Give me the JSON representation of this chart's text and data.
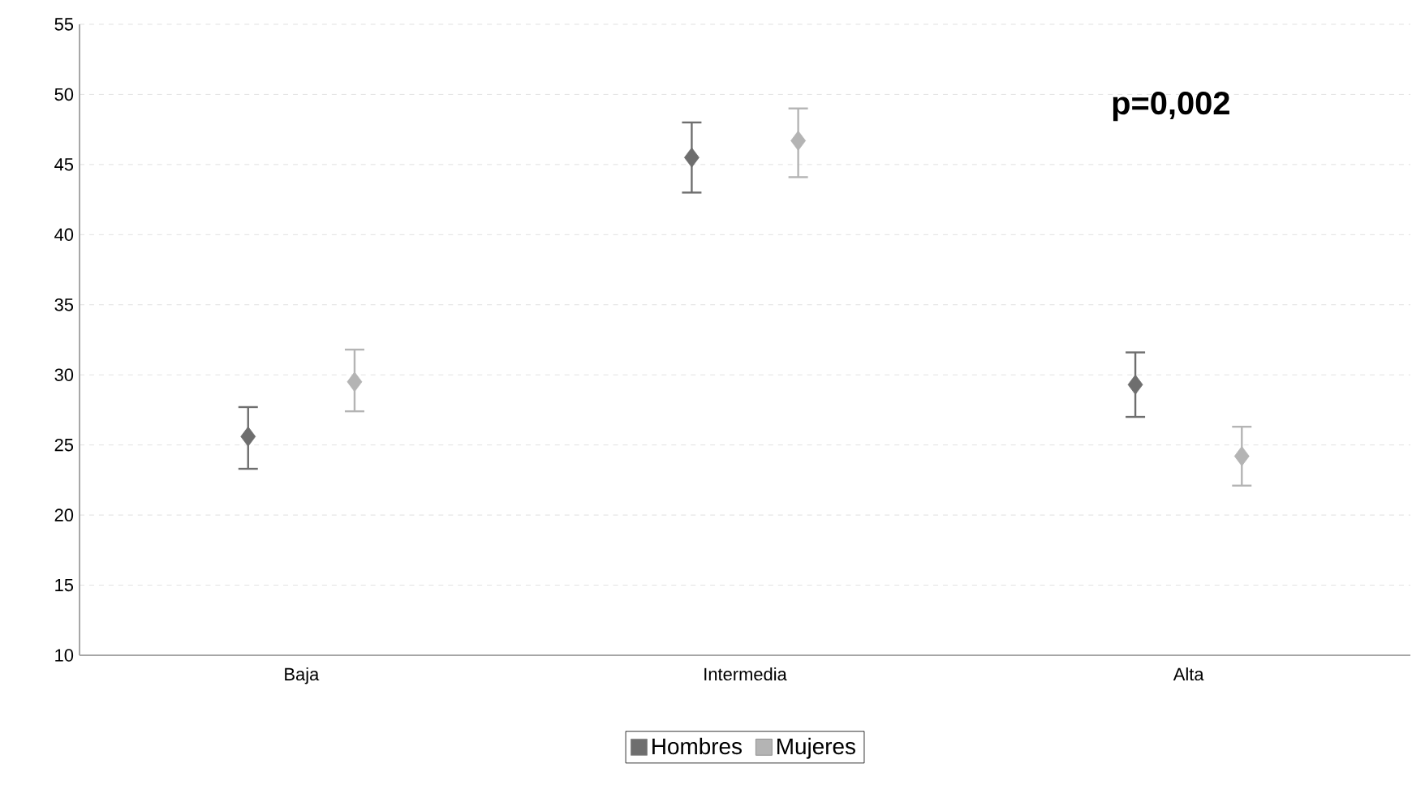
{
  "chart_data": {
    "type": "scatter",
    "categories": [
      "Baja",
      "Intermedia",
      "Alta"
    ],
    "series": [
      {
        "name": "Hombres",
        "color": "#6e6e6e",
        "values": [
          25.6,
          45.5,
          29.3
        ],
        "errors": [
          [
            23.3,
            27.7
          ],
          [
            43.0,
            48.0
          ],
          [
            27.0,
            31.6
          ]
        ]
      },
      {
        "name": "Mujeres",
        "color": "#b4b4b4",
        "values": [
          29.5,
          46.7,
          24.2
        ],
        "errors": [
          [
            27.4,
            31.8
          ],
          [
            44.1,
            49.0
          ],
          [
            22.1,
            26.3
          ]
        ]
      }
    ],
    "ylim": [
      10,
      55
    ],
    "yticks": [
      10,
      15,
      20,
      25,
      30,
      35,
      40,
      45,
      50,
      55
    ],
    "grid": "y",
    "legend": "bottom",
    "marker": "diamond",
    "annotations": [
      "p=0,002"
    ]
  }
}
